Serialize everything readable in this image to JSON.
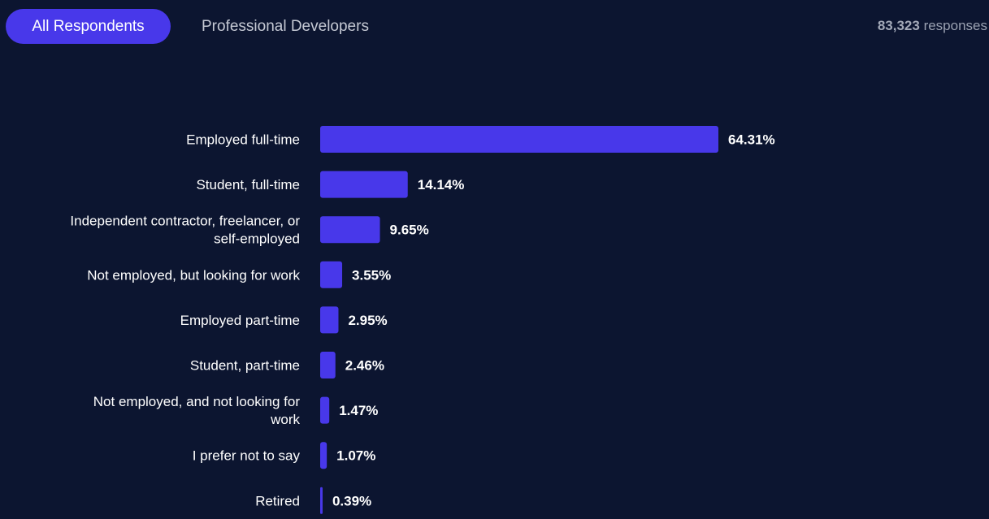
{
  "tabs": [
    {
      "label": "All Respondents",
      "active": true
    },
    {
      "label": "Professional Developers",
      "active": false
    }
  ],
  "responses": {
    "count": "83,323",
    "suffix": "responses"
  },
  "colors": {
    "background": "#0c1530",
    "bar": "#4838ea",
    "active_tab": "#4838ea"
  },
  "chart_data": {
    "type": "bar",
    "orientation": "horizontal",
    "categories": [
      [
        "Employed full-time"
      ],
      [
        "Student, full-time"
      ],
      [
        "Independent contractor, freelancer, or",
        "self-employed"
      ],
      [
        "Not employed, but looking for work"
      ],
      [
        "Employed part-time"
      ],
      [
        "Student, part-time"
      ],
      [
        "Not employed, and not looking for",
        "work"
      ],
      [
        "I prefer not to say"
      ],
      [
        "Retired"
      ]
    ],
    "values": [
      64.31,
      14.14,
      9.65,
      3.55,
      2.95,
      2.46,
      1.47,
      1.07,
      0.39
    ],
    "value_labels": [
      "64.31%",
      "14.14%",
      "9.65%",
      "3.55%",
      "2.95%",
      "2.46%",
      "1.47%",
      "1.07%",
      "0.39%"
    ],
    "title": "",
    "xlabel": "",
    "ylabel": "",
    "xlim": [
      0,
      100
    ],
    "grid": false
  }
}
